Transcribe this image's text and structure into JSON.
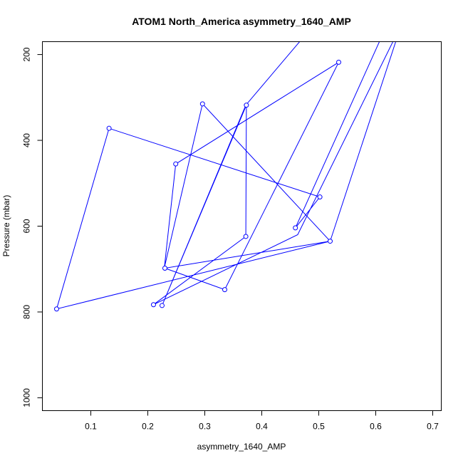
{
  "chart_data": {
    "type": "line",
    "title": "ATOM1 North_America asymmetry_1640_AMP",
    "xlabel": "asymmetry_1640_AMP",
    "ylabel": "Pressure (mbar)",
    "xlim": [
      0.015,
      0.715
    ],
    "ylim": [
      1030,
      170
    ],
    "y_reversed": true,
    "grid": false,
    "x_ticks": [
      0.1,
      0.2,
      0.3,
      0.4,
      0.5,
      0.6,
      0.7
    ],
    "x_tick_labels": [
      "0.1",
      "0.2",
      "0.3",
      "0.4",
      "0.5",
      "0.6",
      "0.7"
    ],
    "y_ticks": [
      200,
      400,
      600,
      800,
      1000
    ],
    "y_tick_labels": [
      "200",
      "400",
      "600",
      "800",
      "1000"
    ],
    "series": [
      {
        "color": "#0000ff",
        "marker": "open-circle",
        "x": [
          0.62,
          0.459,
          0.502,
          0.132,
          0.04,
          0.52,
          0.23,
          0.335,
          0.535,
          0.249,
          0.229,
          0.296,
          0.52,
          0.645,
          0.463,
          0.21,
          0.372,
          0.373,
          0.225,
          0.372,
          0.492
        ],
        "y": [
          130,
          604,
          532,
          372,
          793,
          635,
          698,
          748,
          218,
          455,
          697,
          315,
          635,
          130,
          620,
          783,
          624,
          318,
          785,
          318,
          130
        ],
        "points_marked": [
          false,
          true,
          true,
          true,
          true,
          true,
          true,
          true,
          true,
          true,
          false,
          true,
          false,
          false,
          false,
          true,
          true,
          true,
          true,
          false,
          false
        ]
      }
    ]
  }
}
